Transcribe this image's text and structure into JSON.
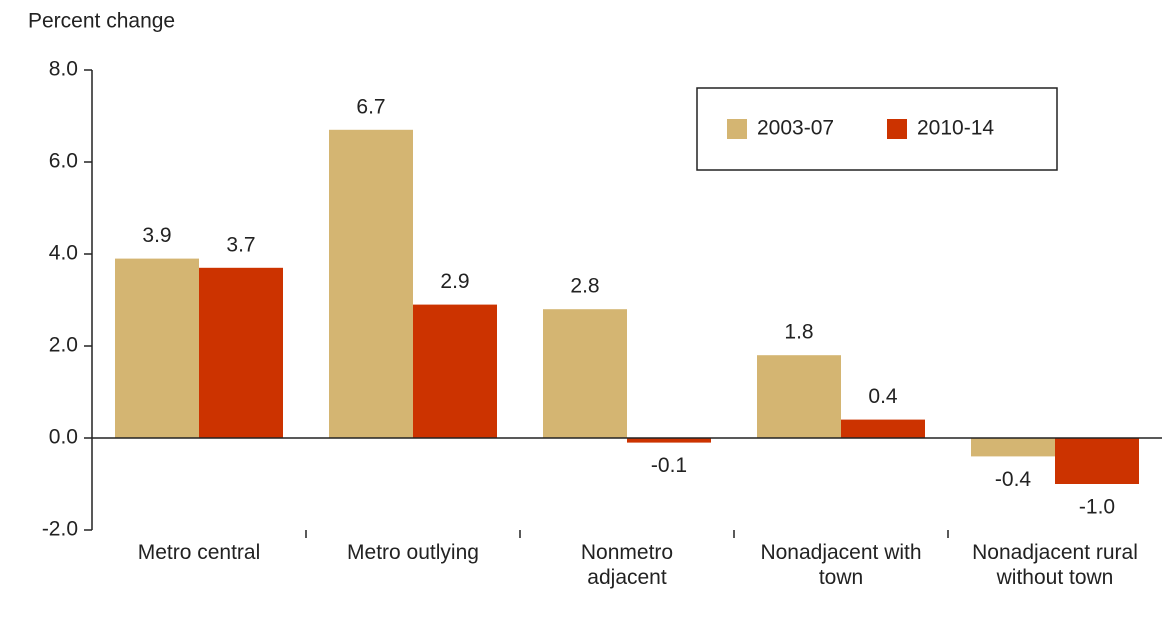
{
  "chart_data": {
    "type": "bar",
    "y_axis_label": "Percent change",
    "categories": [
      "Metro central",
      "Metro outlying",
      "Nonmetro adjacent",
      "Nonadjacent with town",
      "Nonadjacent rural without town"
    ],
    "series": [
      {
        "name": "2003-07",
        "color": "#d4b572",
        "values": [
          3.9,
          6.7,
          2.8,
          1.8,
          -0.4
        ],
        "value_labels": [
          "3.9",
          "6.7",
          "2.8",
          "1.8",
          "-0.4"
        ]
      },
      {
        "name": "2010-14",
        "color": "#cc3300",
        "values": [
          3.7,
          2.9,
          -0.1,
          0.4,
          -1.0
        ],
        "value_labels": [
          "3.7",
          "2.9",
          "-0.1",
          "0.4",
          "-1.0"
        ]
      }
    ],
    "ylim": [
      -2,
      8
    ],
    "yticks": [
      {
        "value": -2,
        "label": "-2.0"
      },
      {
        "value": 0,
        "label": "0.0"
      },
      {
        "value": 2,
        "label": "2.0"
      },
      {
        "value": 4,
        "label": "4.0"
      },
      {
        "value": 6,
        "label": "6.0"
      },
      {
        "value": 8,
        "label": "8.0"
      }
    ],
    "legend": "upper right"
  }
}
